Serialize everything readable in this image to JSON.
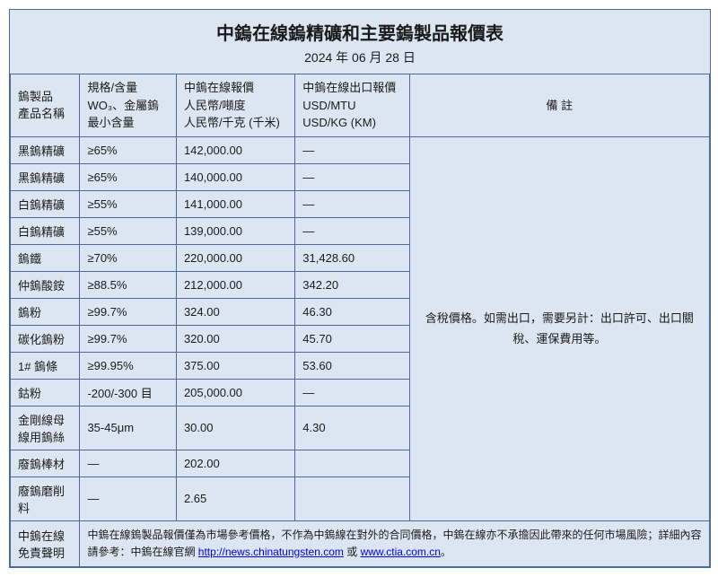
{
  "title": "中鎢在線鎢精礦和主要鎢製品報價表",
  "date": "2024 年 06 月 28 日",
  "headers": {
    "col0_l1": "鎢製品",
    "col0_l2": "產品名稱",
    "col1_l1": "規格/含量",
    "col1_l2": "WO₃、金屬鎢",
    "col1_l3": "最小含量",
    "col2_l1": "中鎢在線報價",
    "col2_l2": "人民幣/噸度",
    "col2_l3": "人民幣/千克 (千米)",
    "col3_l1": "中鎢在線出口報價",
    "col3_l2": "USD/MTU",
    "col3_l3": "USD/KG (KM)",
    "col4": "備 註"
  },
  "rows": [
    {
      "name": "黑鎢精礦",
      "spec": "≥65%",
      "rmb": "142,000.00",
      "usd": "—"
    },
    {
      "name": "黑鎢精礦",
      "spec": "≥65%",
      "rmb": "140,000.00",
      "usd": "—"
    },
    {
      "name": "白鎢精礦",
      "spec": "≥55%",
      "rmb": "141,000.00",
      "usd": "—"
    },
    {
      "name": "白鎢精礦",
      "spec": "≥55%",
      "rmb": "139,000.00",
      "usd": "—"
    },
    {
      "name": "鎢鐵",
      "spec": "≥70%",
      "rmb": "220,000.00",
      "usd": "31,428.60"
    },
    {
      "name": "仲鎢酸銨",
      "spec": "≥88.5%",
      "rmb": "212,000.00",
      "usd": "342.20"
    },
    {
      "name": "鎢粉",
      "spec": "≥99.7%",
      "rmb": "324.00",
      "usd": "46.30"
    },
    {
      "name": "碳化鎢粉",
      "spec": "≥99.7%",
      "rmb": "320.00",
      "usd": "45.70"
    },
    {
      "name": "1# 鎢條",
      "spec": "≥99.95%",
      "rmb": "375.00",
      "usd": "53.60"
    },
    {
      "name": "鈷粉",
      "spec": "-200/-300 目",
      "rmb": "205,000.00",
      "usd": "—"
    },
    {
      "name": "金剛線母線用鎢絲",
      "spec": "35-45μm",
      "rmb": "30.00",
      "usd": "4.30"
    },
    {
      "name": "廢鎢棒材",
      "spec": "—",
      "rmb": "202.00",
      "usd": ""
    },
    {
      "name": "廢鎢磨削料",
      "spec": "—",
      "rmb": "2.65",
      "usd": ""
    }
  ],
  "note": "含稅價格。如需出口，需要另計：出口許可、出口關稅、運保費用等。",
  "disclaimer_label_l1": "中鎢在線",
  "disclaimer_label_l2": "免責聲明",
  "disclaimer_text_1": "中鎢在線鎢製品報價僅為市場參考價格，不作為中鎢線在對外的合同價格，中鎢在線亦不承擔因此帶來的任何市場風險；詳細內容請參考：中鎢在線官網 ",
  "link1": "http://news.chinatungsten.com",
  "disclaimer_text_2": " 或 ",
  "link2": "www.ctia.com.cn",
  "disclaimer_text_3": "。"
}
